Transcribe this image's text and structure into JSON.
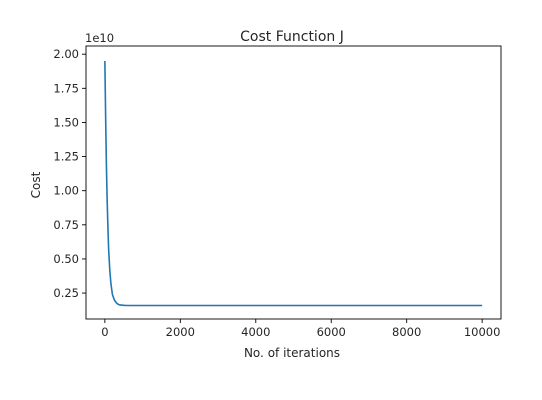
{
  "chart_data": {
    "type": "line",
    "title": "Cost Function J",
    "xlabel": "No. of iterations",
    "ylabel": "Cost",
    "y_scale_label": "1e10",
    "xlim": [
      -500,
      10500
    ],
    "ylim": [
      0.06,
      2.06
    ],
    "xticks": [
      0,
      2000,
      4000,
      6000,
      8000,
      10000
    ],
    "xtick_labels": [
      "0",
      "2000",
      "4000",
      "6000",
      "8000",
      "10000"
    ],
    "yticks": [
      0.25,
      0.5,
      0.75,
      1.0,
      1.25,
      1.5,
      1.75,
      2.0
    ],
    "ytick_labels": [
      "0.25",
      "0.50",
      "0.75",
      "1.00",
      "1.25",
      "1.50",
      "1.75",
      "2.00"
    ],
    "grid": false,
    "series": [
      {
        "color": "#1f77b4",
        "x": [
          0,
          20,
          40,
          60,
          80,
          100,
          130,
          160,
          200,
          250,
          300,
          350,
          400,
          500,
          600,
          800,
          1000,
          2000,
          4000,
          6000,
          8000,
          10000
        ],
        "y": [
          1.95,
          1.55,
          1.2,
          0.94,
          0.74,
          0.57,
          0.42,
          0.32,
          0.24,
          0.2,
          0.18,
          0.168,
          0.163,
          0.16,
          0.159,
          0.159,
          0.159,
          0.159,
          0.159,
          0.159,
          0.159,
          0.159
        ]
      }
    ]
  }
}
